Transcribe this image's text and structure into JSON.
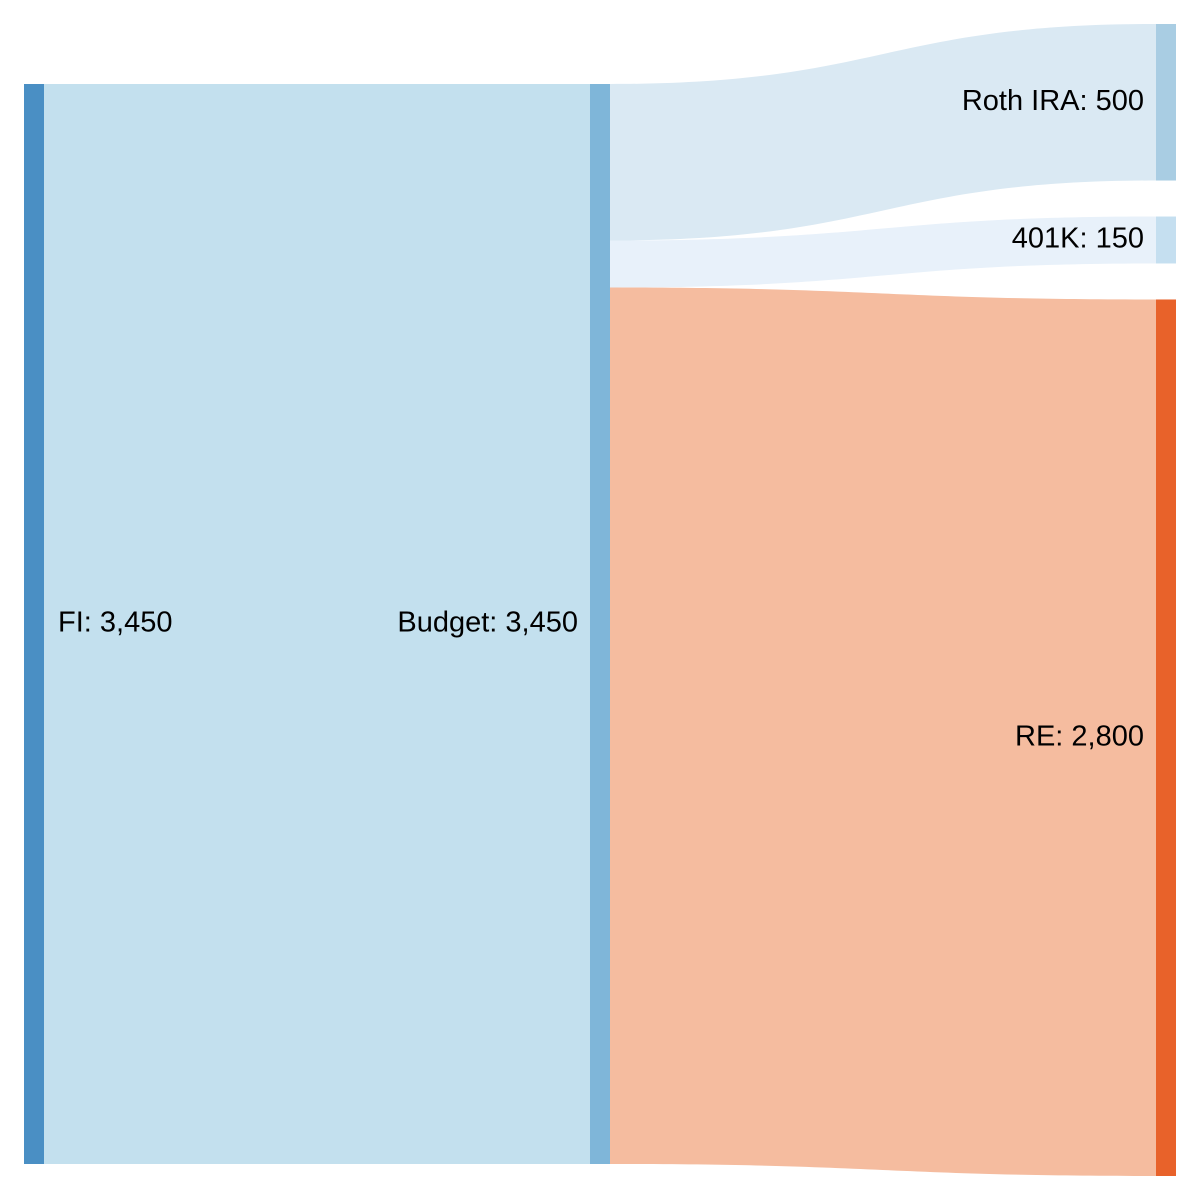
{
  "chart_data": {
    "type": "sankey",
    "nodes": [
      {
        "id": "fi",
        "name": "FI",
        "value": 3450,
        "label": "FI: 3,450",
        "color": "#4a8fc4",
        "column": 0
      },
      {
        "id": "budget",
        "name": "Budget",
        "value": 3450,
        "label": "Budget: 3,450",
        "color": "#7fb6d9",
        "column": 1
      },
      {
        "id": "roth",
        "name": "Roth IRA",
        "value": 500,
        "label": "Roth IRA: 500",
        "color": "#a9cde3",
        "column": 2
      },
      {
        "id": "k401",
        "name": "401K",
        "value": 150,
        "label": "401K: 150",
        "color": "#c5dff0",
        "column": 2
      },
      {
        "id": "re",
        "name": "RE",
        "value": 2800,
        "label": "RE: 2,800",
        "color": "#e8622a",
        "column": 2
      }
    ],
    "links": [
      {
        "source": "fi",
        "target": "budget",
        "value": 3450,
        "color": "#c3e0ee"
      },
      {
        "source": "budget",
        "target": "roth",
        "value": 500,
        "color": "#dae9f3"
      },
      {
        "source": "budget",
        "target": "k401",
        "value": 150,
        "color": "#e8f1fa"
      },
      {
        "source": "budget",
        "target": "re",
        "value": 2800,
        "color": "#f5bc9f"
      }
    ]
  }
}
